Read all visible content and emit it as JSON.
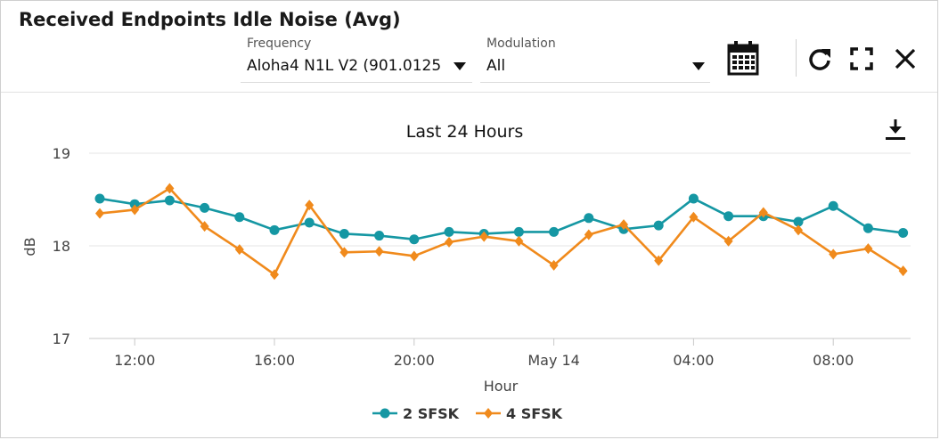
{
  "widget": {
    "title": "Received Endpoints Idle Noise (Avg)"
  },
  "filters": {
    "frequency": {
      "label": "Frequency",
      "value": "Aloha4 N1L V2 (901.0125"
    },
    "modulation": {
      "label": "Modulation",
      "value": "All"
    }
  },
  "toolbar": {
    "icons": [
      "calendar-icon",
      "refresh-icon",
      "fullscreen-icon",
      "close-icon"
    ]
  },
  "chart_data": {
    "type": "line",
    "title": "Last 24 Hours",
    "xlabel": "Hour",
    "ylabel": "dB",
    "ylim": [
      17,
      19
    ],
    "yticks": [
      "17",
      "18",
      "19"
    ],
    "x": [
      "11:00",
      "12:00",
      "13:00",
      "14:00",
      "15:00",
      "16:00",
      "17:00",
      "18:00",
      "19:00",
      "20:00",
      "21:00",
      "22:00",
      "23:00",
      "May 14 00:00",
      "01:00",
      "02:00",
      "03:00",
      "04:00",
      "05:00",
      "06:00",
      "07:00",
      "08:00",
      "09:00",
      "10:00"
    ],
    "xticks": [
      {
        "label": "12:00",
        "index": 1
      },
      {
        "label": "16:00",
        "index": 5
      },
      {
        "label": "20:00",
        "index": 9
      },
      {
        "label": "May 14",
        "index": 13
      },
      {
        "label": "04:00",
        "index": 17
      },
      {
        "label": "08:00",
        "index": 21
      }
    ],
    "grid": true,
    "legend_position": "bottom",
    "series": [
      {
        "name": "2 SFSK",
        "color": "#1597a3",
        "marker": "circle",
        "values": [
          18.51,
          18.45,
          18.49,
          18.41,
          18.31,
          18.17,
          18.25,
          18.13,
          18.11,
          18.07,
          18.15,
          18.13,
          18.15,
          18.15,
          18.3,
          18.18,
          18.22,
          18.51,
          18.32,
          18.32,
          18.26,
          18.43,
          18.19,
          18.14
        ]
      },
      {
        "name": "4 SFSK",
        "color": "#f08a1c",
        "marker": "diamond",
        "values": [
          18.35,
          18.39,
          18.62,
          18.21,
          17.96,
          17.69,
          18.44,
          17.93,
          17.94,
          17.89,
          18.04,
          18.1,
          18.05,
          17.79,
          18.12,
          18.23,
          17.84,
          18.31,
          18.05,
          18.36,
          18.17,
          17.91,
          17.97,
          17.73
        ]
      }
    ]
  }
}
